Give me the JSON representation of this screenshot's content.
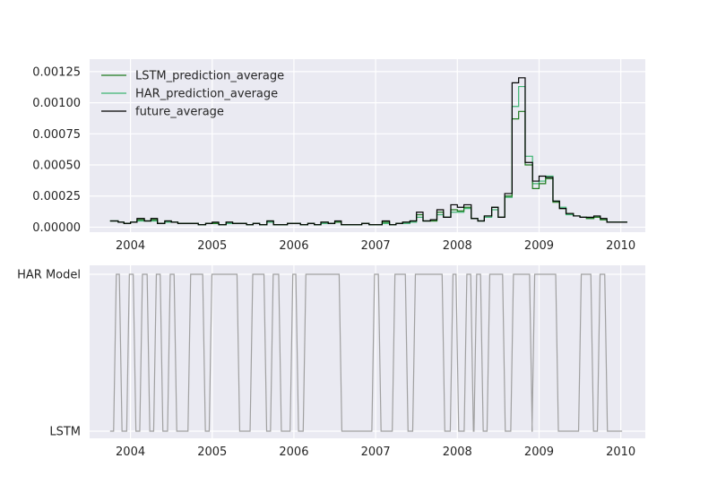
{
  "chart_data": [
    {
      "type": "line",
      "step": true,
      "grid": true,
      "legend_position": "upper-left",
      "xlim": [
        2003.5,
        2010.3
      ],
      "ylim": [
        -4e-05,
        0.00135
      ],
      "x_ticks": [
        2004,
        2005,
        2006,
        2007,
        2008,
        2009,
        2010
      ],
      "x_tick_labels": [
        "2004",
        "2005",
        "2006",
        "2007",
        "2008",
        "2009",
        "2010"
      ],
      "y_ticks": [
        0,
        0.00025,
        0.0005,
        0.00075,
        0.001,
        0.00125
      ],
      "y_tick_labels": [
        "0.00000",
        "0.00025",
        "0.00050",
        "0.00075",
        "0.00100",
        "0.00125"
      ],
      "x": [
        2003.75,
        2003.85,
        2003.92,
        2004.0,
        2004.08,
        2004.17,
        2004.25,
        2004.33,
        2004.42,
        2004.5,
        2004.58,
        2004.67,
        2004.75,
        2004.83,
        2004.92,
        2005.0,
        2005.08,
        2005.17,
        2005.25,
        2005.33,
        2005.42,
        2005.5,
        2005.58,
        2005.67,
        2005.75,
        2005.83,
        2005.92,
        2006.0,
        2006.08,
        2006.17,
        2006.25,
        2006.33,
        2006.42,
        2006.5,
        2006.58,
        2006.67,
        2006.75,
        2006.83,
        2006.92,
        2007.0,
        2007.08,
        2007.17,
        2007.25,
        2007.33,
        2007.42,
        2007.5,
        2007.58,
        2007.67,
        2007.75,
        2007.83,
        2007.92,
        2008.0,
        2008.08,
        2008.17,
        2008.25,
        2008.33,
        2008.42,
        2008.5,
        2008.58,
        2008.67,
        2008.75,
        2008.83,
        2008.92,
        2009.0,
        2009.08,
        2009.17,
        2009.25,
        2009.33,
        2009.42,
        2009.5,
        2009.58,
        2009.67,
        2009.75,
        2009.83,
        2009.92,
        2010.0
      ],
      "series": [
        {
          "name": "LSTM_prediction_average",
          "color": "#1e7a1e",
          "values": [
            5e-05,
            4e-05,
            3e-05,
            4e-05,
            6e-05,
            5e-05,
            6e-05,
            3e-05,
            5e-05,
            4e-05,
            3e-05,
            3e-05,
            3e-05,
            2e-05,
            3e-05,
            3e-05,
            2e-05,
            4e-05,
            3e-05,
            3e-05,
            2e-05,
            3e-05,
            2e-05,
            5e-05,
            2e-05,
            2e-05,
            3e-05,
            3e-05,
            2e-05,
            3e-05,
            2e-05,
            4e-05,
            3e-05,
            4e-05,
            2e-05,
            2e-05,
            2e-05,
            3e-05,
            2e-05,
            2e-05,
            4e-05,
            2e-05,
            3e-05,
            4e-05,
            5e-05,
            0.0001,
            5e-05,
            5e-05,
            0.00012,
            8e-05,
            0.00014,
            0.00013,
            0.00016,
            7e-05,
            5e-05,
            9e-05,
            0.00016,
            8e-05,
            0.00025,
            0.00087,
            0.00093,
            0.0005,
            0.00031,
            0.00035,
            0.00039,
            0.0002,
            0.00015,
            0.00011,
            9e-05,
            8e-05,
            7e-05,
            8e-05,
            6e-05,
            4e-05,
            4e-05,
            4e-05
          ]
        },
        {
          "name": "HAR_prediction_average",
          "color": "#3cb371",
          "values": [
            5e-05,
            4e-05,
            3e-05,
            4e-05,
            5e-05,
            5e-05,
            5e-05,
            3e-05,
            4e-05,
            4e-05,
            3e-05,
            3e-05,
            3e-05,
            2e-05,
            3e-05,
            3e-05,
            2e-05,
            3e-05,
            3e-05,
            3e-05,
            2e-05,
            3e-05,
            2e-05,
            4e-05,
            2e-05,
            2e-05,
            3e-05,
            3e-05,
            2e-05,
            3e-05,
            2e-05,
            3e-05,
            3e-05,
            4e-05,
            2e-05,
            2e-05,
            2e-05,
            3e-05,
            2e-05,
            2e-05,
            3e-05,
            2e-05,
            3e-05,
            3e-05,
            4e-05,
            8e-05,
            5e-05,
            5e-05,
            0.0001,
            8e-05,
            0.00012,
            0.00012,
            0.00015,
            7e-05,
            5e-05,
            8e-05,
            0.00014,
            8e-05,
            0.00024,
            0.00097,
            0.00113,
            0.00057,
            0.00035,
            0.00037,
            0.00041,
            0.00021,
            0.00016,
            0.0001,
            9e-05,
            8e-05,
            7e-05,
            8e-05,
            6e-05,
            4e-05,
            4e-05,
            4e-05
          ]
        },
        {
          "name": "future_average",
          "color": "#000000",
          "values": [
            5e-05,
            4e-05,
            3e-05,
            4e-05,
            7e-05,
            5e-05,
            7e-05,
            3e-05,
            5e-05,
            4e-05,
            3e-05,
            3e-05,
            3e-05,
            2e-05,
            3e-05,
            4e-05,
            2e-05,
            4e-05,
            3e-05,
            3e-05,
            2e-05,
            3e-05,
            2e-05,
            5e-05,
            2e-05,
            2e-05,
            3e-05,
            3e-05,
            2e-05,
            3e-05,
            2e-05,
            4e-05,
            3e-05,
            5e-05,
            2e-05,
            2e-05,
            2e-05,
            3e-05,
            2e-05,
            2e-05,
            5e-05,
            2e-05,
            3e-05,
            4e-05,
            5e-05,
            0.00012,
            5e-05,
            6e-05,
            0.00014,
            8e-05,
            0.00018,
            0.00016,
            0.00018,
            7e-05,
            5e-05,
            9e-05,
            0.00016,
            8e-05,
            0.00027,
            0.00116,
            0.0012,
            0.00052,
            0.00037,
            0.00041,
            0.0004,
            0.00021,
            0.00015,
            0.00011,
            9e-05,
            8e-05,
            8e-05,
            9e-05,
            7e-05,
            4e-05,
            4e-05,
            4e-05
          ]
        }
      ]
    },
    {
      "type": "line",
      "step": true,
      "grid": true,
      "xlim": [
        2003.5,
        2010.3
      ],
      "x_ticks": [
        2004,
        2005,
        2006,
        2007,
        2008,
        2009,
        2010
      ],
      "x_tick_labels": [
        "2004",
        "2005",
        "2006",
        "2007",
        "2008",
        "2009",
        "2010"
      ],
      "y_categories": [
        "LSTM",
        "HAR Model"
      ],
      "line_color": "#a0a0a0",
      "state_switch_times": [
        2003.75,
        2003.83,
        2003.9,
        2003.98,
        2004.06,
        2004.14,
        2004.22,
        2004.29,
        2004.37,
        2004.42,
        2004.49,
        2004.57,
        2004.67,
        2004.82,
        2004.98,
        2005.07,
        2005.36,
        2005.5,
        2005.66,
        2005.74,
        2005.85,
        2005.92,
        2006.15,
        2006.22,
        2006.45,
        2006.57,
        2006.63,
        2006.69,
        2006.79,
        2006.84,
        2006.89,
        2006.96,
        2006.97,
        2007.0,
        2007.02,
        2007.1
      ],
      "states": [
        {
          "t": 2003.75,
          "v": 0
        },
        {
          "t": 2003.81,
          "v": 1
        },
        {
          "t": 2003.88,
          "v": 0
        },
        {
          "t": 2003.97,
          "v": 1
        },
        {
          "t": 2004.05,
          "v": 0
        },
        {
          "t": 2004.13,
          "v": 1
        },
        {
          "t": 2004.22,
          "v": 0
        },
        {
          "t": 2004.3,
          "v": 1
        },
        {
          "t": 2004.38,
          "v": 0
        },
        {
          "t": 2004.47,
          "v": 1
        },
        {
          "t": 2004.55,
          "v": 0
        },
        {
          "t": 2004.72,
          "v": 1
        },
        {
          "t": 2004.9,
          "v": 0
        },
        {
          "t": 2004.98,
          "v": 1
        },
        {
          "t": 2005.32,
          "v": 0
        },
        {
          "t": 2005.48,
          "v": 1
        },
        {
          "t": 2005.65,
          "v": 0
        },
        {
          "t": 2005.73,
          "v": 1
        },
        {
          "t": 2005.83,
          "v": 0
        },
        {
          "t": 2005.97,
          "v": 1
        },
        {
          "t": 2006.04,
          "v": 0
        },
        {
          "t": 2006.13,
          "v": 1
        },
        {
          "t": 2006.57,
          "v": 0
        },
        {
          "t": 2006.97,
          "v": 1
        },
        {
          "t": 2007.05,
          "v": 0
        },
        {
          "t": 2007.22,
          "v": 1
        },
        {
          "t": 2007.38,
          "v": 0
        },
        {
          "t": 2007.47,
          "v": 1
        },
        {
          "t": 2007.83,
          "v": 0
        },
        {
          "t": 2007.93,
          "v": 1
        },
        {
          "t": 2008.0,
          "v": 0
        },
        {
          "t": 2008.1,
          "v": 1
        },
        {
          "t": 2008.18,
          "v": 0
        },
        {
          "t": 2008.22,
          "v": 1
        },
        {
          "t": 2008.3,
          "v": 0
        },
        {
          "t": 2008.38,
          "v": 1
        },
        {
          "t": 2008.57,
          "v": 0
        },
        {
          "t": 2008.67,
          "v": 1
        },
        {
          "t": 2008.9,
          "v": 0
        },
        {
          "t": 2008.93,
          "v": 1
        },
        {
          "t": 2009.22,
          "v": 0
        },
        {
          "t": 2009.5,
          "v": 1
        },
        {
          "t": 2009.65,
          "v": 0
        },
        {
          "t": 2009.73,
          "v": 1
        },
        {
          "t": 2009.82,
          "v": 0
        },
        {
          "t": 2010.0,
          "v": 0
        }
      ]
    }
  ]
}
